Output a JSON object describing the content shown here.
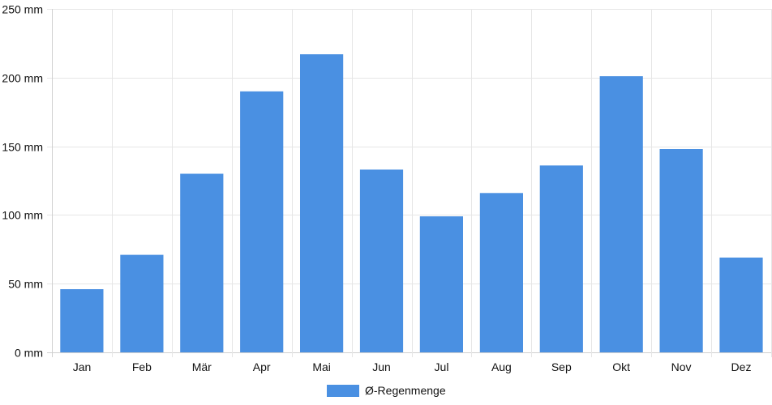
{
  "chart_data": {
    "type": "bar",
    "categories": [
      "Jan",
      "Feb",
      "Mär",
      "Apr",
      "Mai",
      "Jun",
      "Jul",
      "Aug",
      "Sep",
      "Okt",
      "Nov",
      "Dez"
    ],
    "series": [
      {
        "name": "Ø-Regenmenge",
        "values": [
          46,
          71,
          130,
          190,
          217,
          133,
          99,
          116,
          136,
          201,
          148,
          69
        ],
        "color": "#4a90e2"
      }
    ],
    "y_ticks": [
      "0 mm",
      "50 mm",
      "100 mm",
      "150 mm",
      "200 mm",
      "250 mm"
    ],
    "ylim": [
      0,
      250
    ],
    "y_unit": "mm",
    "grid": true,
    "legend_position": "bottom-center",
    "title": "",
    "xlabel": "",
    "ylabel": ""
  }
}
